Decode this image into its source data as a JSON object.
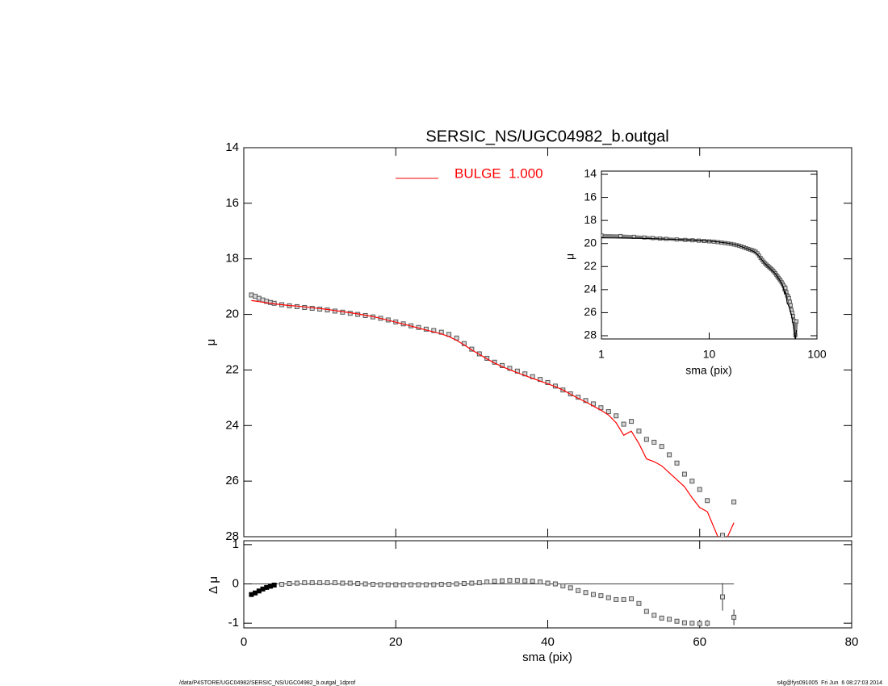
{
  "chart_data": [
    {
      "type": "line",
      "title": "SERSIC_NS/UGC04982_b.outgal",
      "ylabel": "μ",
      "xlim": [
        0,
        80
      ],
      "ylim": [
        28,
        14
      ],
      "yticks": [
        14,
        16,
        18,
        20,
        22,
        24,
        26,
        28
      ],
      "legend": "upper center",
      "x": [
        1,
        1.5,
        2,
        2.5,
        3,
        3.5,
        4,
        5,
        6,
        7,
        8,
        9,
        10,
        11,
        12,
        13,
        14,
        15,
        16,
        17,
        18,
        19,
        20,
        21,
        22,
        23,
        24,
        25,
        26,
        27,
        28,
        29,
        30,
        31,
        32,
        33,
        34,
        35,
        36,
        37,
        38,
        39,
        40,
        41,
        42,
        43,
        44,
        45,
        46,
        47,
        48,
        49,
        50,
        51,
        52,
        53,
        54,
        55,
        56,
        57,
        58,
        59,
        60,
        61,
        63,
        64.5
      ],
      "series": [
        {
          "color": "#808080",
          "marker": "square",
          "values": [
            19.3,
            19.35,
            19.42,
            19.48,
            19.53,
            19.57,
            19.6,
            19.65,
            19.69,
            19.72,
            19.75,
            19.78,
            19.81,
            19.84,
            19.88,
            19.92,
            19.96,
            20.0,
            20.04,
            20.09,
            20.14,
            20.2,
            20.27,
            20.34,
            20.41,
            20.47,
            20.53,
            20.58,
            20.64,
            20.72,
            20.85,
            21.05,
            21.25,
            21.42,
            21.58,
            21.72,
            21.84,
            21.94,
            22.04,
            22.14,
            22.24,
            22.34,
            22.45,
            22.58,
            22.72,
            22.86,
            22.98,
            23.1,
            23.22,
            23.36,
            23.5,
            23.65,
            23.95,
            23.85,
            24.2,
            24.5,
            24.6,
            24.75,
            25.05,
            25.35,
            25.75,
            26.0,
            26.3,
            26.7,
            27.95,
            26.75
          ]
        },
        {
          "name": "BULGE  1.000",
          "color": "#ff0000",
          "marker": "line",
          "values": [
            19.5,
            19.52,
            19.54,
            19.56,
            19.58,
            19.6,
            19.62,
            19.65,
            19.68,
            19.7,
            19.73,
            19.76,
            19.79,
            19.82,
            19.86,
            19.9,
            19.94,
            19.98,
            20.03,
            20.08,
            20.14,
            20.21,
            20.28,
            20.35,
            20.42,
            20.49,
            20.56,
            20.63,
            20.7,
            20.8,
            20.93,
            21.1,
            21.28,
            21.44,
            21.6,
            21.75,
            21.88,
            21.99,
            22.1,
            22.2,
            22.3,
            22.4,
            22.5,
            22.6,
            22.72,
            22.87,
            23.02,
            23.15,
            23.3,
            23.45,
            23.62,
            23.9,
            24.35,
            24.2,
            24.65,
            25.2,
            25.3,
            25.45,
            25.7,
            25.95,
            26.2,
            26.6,
            26.95,
            27.1,
            28.4,
            27.5
          ]
        }
      ]
    },
    {
      "type": "scatter",
      "ylabel": "Δ μ",
      "xlabel": "sma (pix)",
      "xlim": [
        0,
        80
      ],
      "xticks": [
        0,
        20,
        40,
        60,
        80
      ],
      "ylim": [
        -1.12,
        1.1
      ],
      "yticks": [
        1,
        0,
        -1
      ],
      "color": "#808080",
      "values": [
        -0.27,
        -0.23,
        -0.18,
        -0.13,
        -0.09,
        -0.06,
        -0.03,
        -0.01,
        0.01,
        0.02,
        0.03,
        0.03,
        0.03,
        0.03,
        0.03,
        0.02,
        0.02,
        0.01,
        0.0,
        -0.01,
        -0.02,
        -0.02,
        -0.02,
        -0.02,
        -0.02,
        -0.02,
        -0.02,
        -0.02,
        -0.01,
        -0.01,
        0.0,
        0.01,
        0.02,
        0.03,
        0.05,
        0.07,
        0.08,
        0.09,
        0.09,
        0.08,
        0.07,
        0.05,
        0.02,
        0.0,
        -0.05,
        -0.1,
        -0.17,
        -0.22,
        -0.27,
        -0.3,
        -0.35,
        -0.4,
        -0.4,
        -0.38,
        -0.5,
        -0.7,
        -0.8,
        -0.87,
        -0.9,
        -0.95,
        -0.99,
        -1.0,
        -1.01,
        -1.0,
        -0.33,
        -0.85
      ],
      "errors": [
        0.01,
        0.01,
        0.01,
        0.01,
        0.01,
        0.01,
        0.01,
        0.01,
        0.01,
        0.01,
        0.01,
        0.01,
        0.01,
        0.01,
        0.01,
        0.01,
        0.01,
        0.01,
        0.01,
        0.01,
        0.01,
        0.01,
        0.01,
        0.01,
        0.01,
        0.01,
        0.01,
        0.01,
        0.01,
        0.01,
        0.01,
        0.01,
        0.01,
        0.01,
        0.01,
        0.01,
        0.01,
        0.01,
        0.01,
        0.01,
        0.01,
        0.01,
        0.01,
        0.01,
        0.01,
        0.01,
        0.01,
        0.01,
        0.01,
        0.01,
        0.01,
        0.01,
        0.01,
        0.01,
        0.01,
        0.02,
        0.02,
        0.03,
        0.04,
        0.05,
        0.05,
        0.06,
        0.07,
        0.08,
        0.35,
        0.2
      ]
    },
    {
      "type": "line",
      "xlabel": "sma (pix)",
      "ylabel": "μ",
      "log_x": true,
      "xlim": [
        1,
        100
      ],
      "xticks": [
        1,
        10,
        100
      ],
      "ylim": [
        28.28,
        13.72
      ],
      "yticks": [
        14,
        16,
        18,
        20,
        22,
        24,
        26,
        28
      ],
      "color": "#000000"
    }
  ],
  "footer": {
    "left": "/data/P4STORE/UGC04982/SERSIC_NS/UGC04982_b.outgal_1dprof",
    "right": "s4g@fys091005  Fri Jun  6 08:27:03 2014"
  }
}
